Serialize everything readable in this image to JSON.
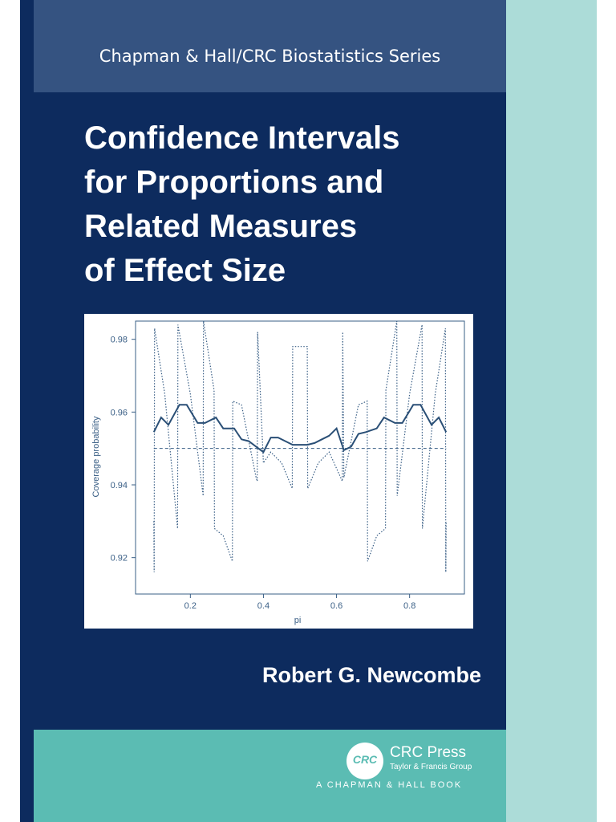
{
  "series_name": "Chapman & Hall/CRC Biostatistics Series",
  "title_lines": [
    "Confidence Intervals",
    "for Proportions and",
    "Related Measures",
    "of Effect Size"
  ],
  "author": "Robert G. Newcombe",
  "publisher": {
    "logo_text": "CRC",
    "name": "CRC Press",
    "group": "Taylor & Francis Group",
    "imprint": "A CHAPMAN & HALL BOOK"
  },
  "colors": {
    "cover_navy": "#0d2b5e",
    "series_band": "#355381",
    "spine_light_teal": "#acdcd8",
    "publisher_teal": "#5bbcb3",
    "plot_ink": "#3a5f86"
  },
  "chart_data": {
    "type": "line",
    "xlabel": "pi",
    "ylabel": "Coverage probability",
    "xlim": [
      0.05,
      0.95
    ],
    "ylim": [
      0.91,
      0.985
    ],
    "x_ticks": [
      "0.2",
      "0.4",
      "0.6",
      "0.8"
    ],
    "y_ticks": [
      "0.98",
      "0.96",
      "0.94",
      "0.92"
    ],
    "reference_line": 0.95,
    "series": [
      {
        "style": "solid",
        "x": [
          0.1,
          0.12,
          0.14,
          0.17,
          0.19,
          0.22,
          0.24,
          0.27,
          0.29,
          0.32,
          0.34,
          0.36,
          0.38,
          0.4,
          0.42,
          0.44,
          0.46,
          0.48,
          0.5,
          0.52,
          0.54,
          0.56,
          0.58,
          0.6,
          0.62,
          0.64,
          0.66,
          0.68,
          0.71,
          0.73,
          0.76,
          0.78,
          0.81,
          0.83,
          0.86,
          0.88,
          0.9
        ],
        "y": [
          0.9545,
          0.9585,
          0.9565,
          0.962,
          0.962,
          0.957,
          0.957,
          0.9585,
          0.9555,
          0.9555,
          0.9525,
          0.952,
          0.9505,
          0.949,
          0.953,
          0.953,
          0.952,
          0.951,
          0.951,
          0.951,
          0.9515,
          0.9525,
          0.9535,
          0.9555,
          0.9495,
          0.9505,
          0.954,
          0.9545,
          0.9555,
          0.9585,
          0.957,
          0.957,
          0.962,
          0.962,
          0.9565,
          0.9585,
          0.9545
        ]
      },
      {
        "style": "dotted",
        "x": [
          0.1,
          0.101,
          0.102,
          0.13,
          0.165,
          0.166,
          0.2,
          0.235,
          0.236,
          0.265,
          0.266,
          0.29,
          0.315,
          0.316,
          0.34,
          0.38,
          0.383,
          0.384,
          0.4,
          0.42,
          0.45,
          0.479,
          0.48,
          0.5,
          0.52,
          0.521,
          0.55,
          0.58,
          0.616,
          0.617,
          0.62,
          0.66,
          0.684,
          0.685,
          0.71,
          0.734,
          0.735,
          0.765,
          0.766,
          0.8,
          0.834,
          0.835,
          0.87,
          0.898,
          0.899,
          0.9
        ],
        "y": [
          0.93,
          0.916,
          0.983,
          0.965,
          0.928,
          0.984,
          0.965,
          0.937,
          0.985,
          0.966,
          0.928,
          0.926,
          0.919,
          0.963,
          0.962,
          0.942,
          0.941,
          0.982,
          0.946,
          0.949,
          0.946,
          0.939,
          0.978,
          0.978,
          0.978,
          0.939,
          0.946,
          0.949,
          0.941,
          0.982,
          0.942,
          0.962,
          0.963,
          0.919,
          0.926,
          0.928,
          0.966,
          0.985,
          0.937,
          0.965,
          0.984,
          0.928,
          0.965,
          0.983,
          0.916,
          0.93
        ]
      }
    ]
  }
}
